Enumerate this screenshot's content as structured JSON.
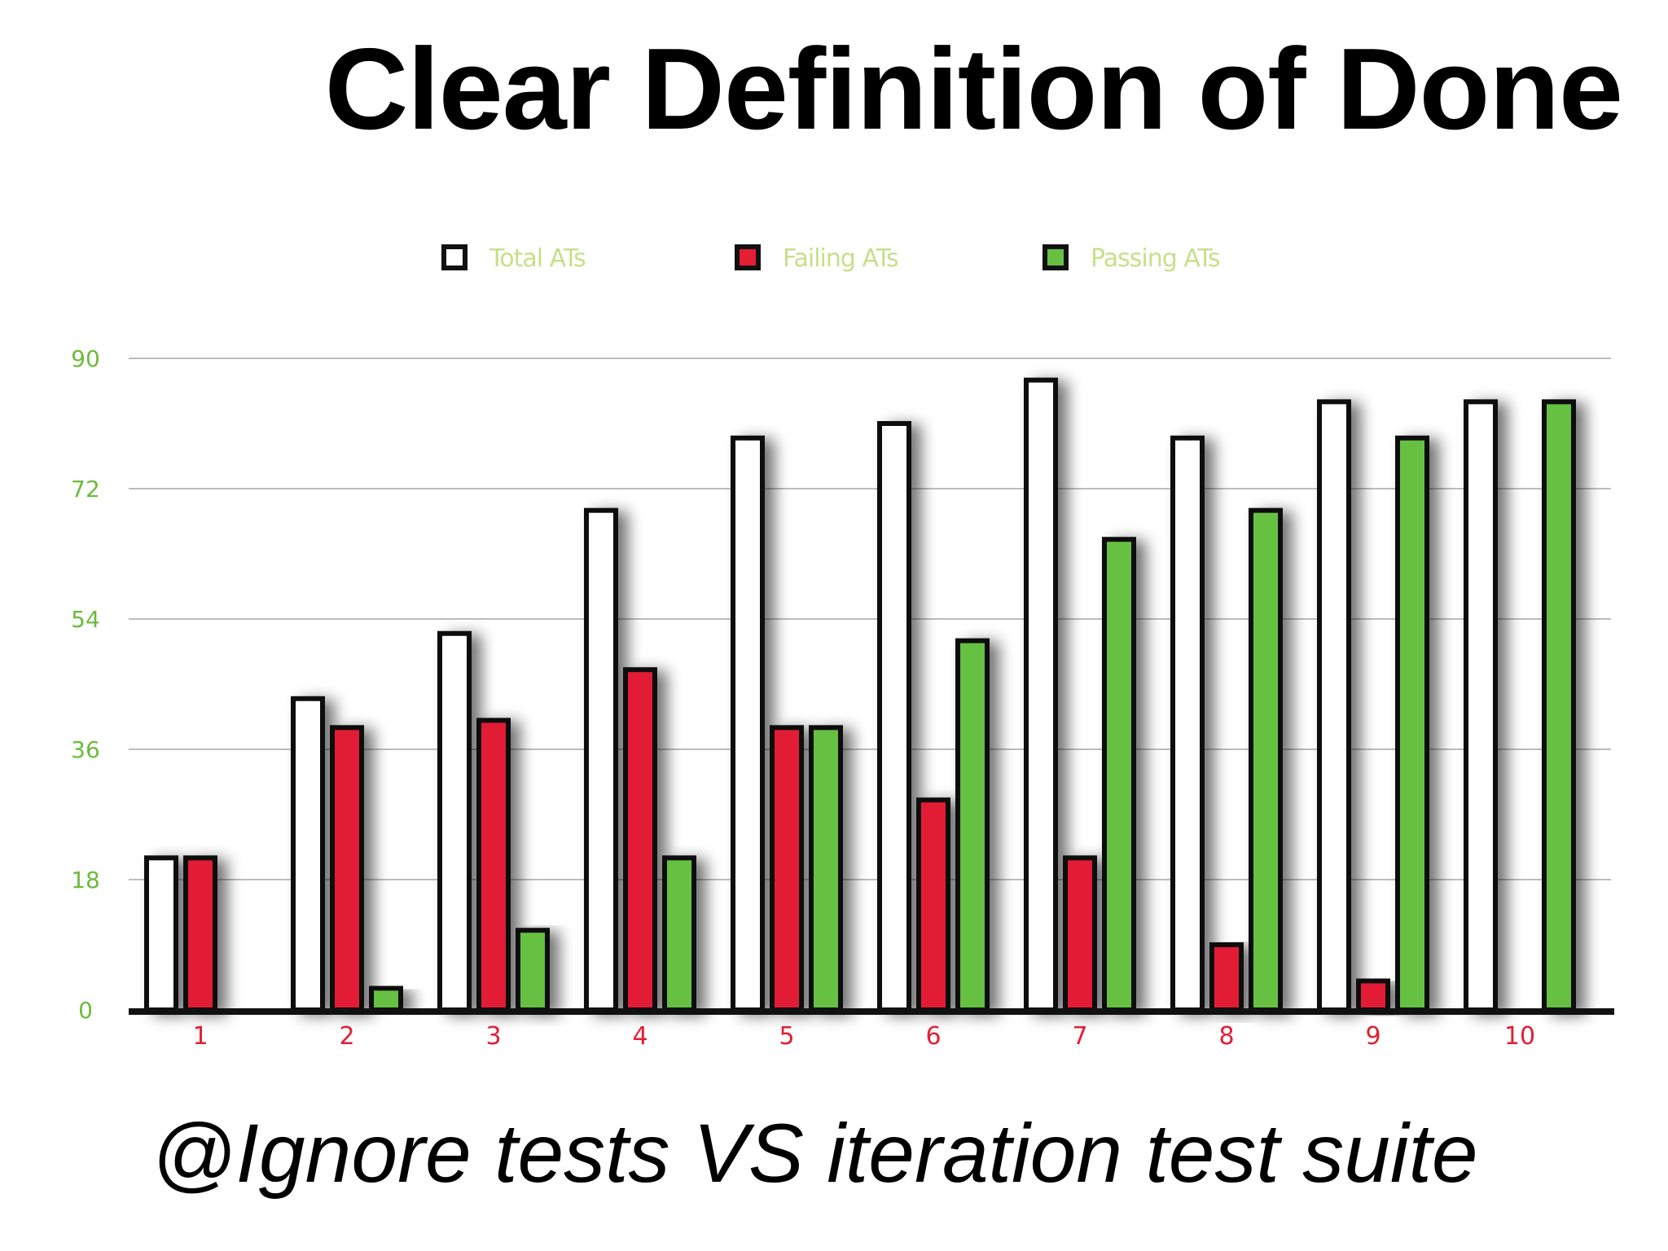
{
  "slide": {
    "title": "Clear Definition of Done",
    "caption": "@Ignore tests VS iteration test suite"
  },
  "colors": {
    "total": "#ffffff",
    "failing": "#e31e35",
    "passing": "#66c142",
    "bar_outline": "#111111",
    "grid": "#bdbdbd",
    "axis": "#111111",
    "ytick": "#6dbb3c",
    "xtick": "#e31e35",
    "legend_text": "#c6e08a"
  },
  "chart_data": {
    "type": "bar",
    "categories": [
      "1",
      "2",
      "3",
      "4",
      "5",
      "6",
      "7",
      "8",
      "9",
      "10"
    ],
    "series": [
      {
        "name": "Total ATs",
        "values": [
          21,
          43,
          52,
          69,
          79,
          81,
          87,
          79,
          84,
          84
        ]
      },
      {
        "name": "Failing ATs",
        "values": [
          21,
          39,
          40,
          47,
          39,
          29,
          21,
          9,
          4,
          0
        ]
      },
      {
        "name": "Passing ATs",
        "values": [
          0,
          3,
          11,
          21,
          39,
          51,
          65,
          69,
          79,
          84
        ]
      }
    ],
    "yticks": [
      0,
      18,
      36,
      54,
      72,
      90
    ],
    "ylim": [
      0,
      90
    ],
    "grid": true,
    "legend_position": "top-center",
    "title": "",
    "xlabel": "",
    "ylabel": ""
  }
}
